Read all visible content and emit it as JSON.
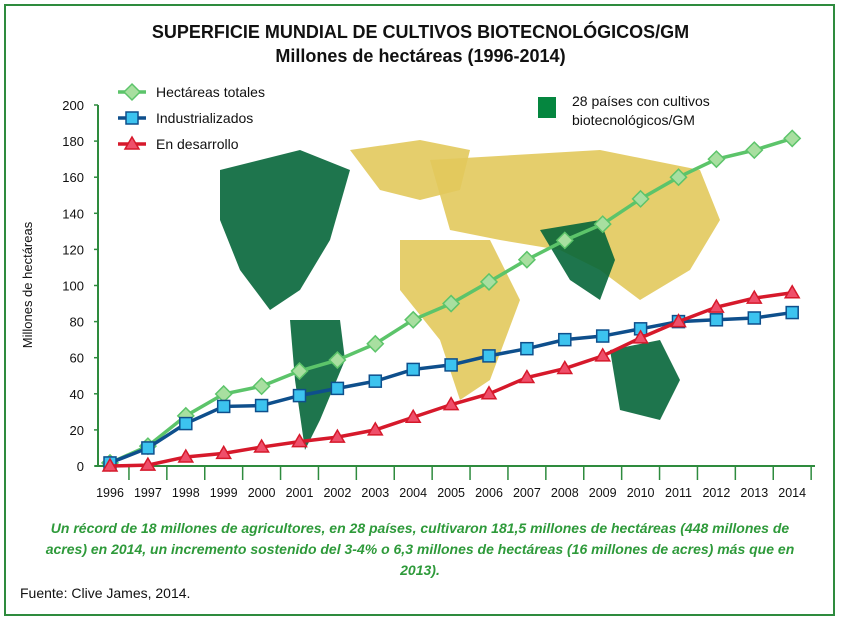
{
  "chart_data": {
    "type": "line",
    "title": "SUPERFICIE MUNDIAL DE CULTIVOS BIOTECNOLÓGICOS/GM",
    "subtitle": "Millones de hectáreas (1996-2014)",
    "xlabel": "",
    "ylabel": "Millones de hectáreas",
    "ylim": [
      0,
      200
    ],
    "yticks": [
      0,
      20,
      40,
      60,
      80,
      100,
      120,
      140,
      160,
      180,
      200
    ],
    "x": [
      "1996",
      "1997",
      "1998",
      "1999",
      "2000",
      "2001",
      "2002",
      "2003",
      "2004",
      "2005",
      "2006",
      "2007",
      "2008",
      "2009",
      "2010",
      "2011",
      "2012",
      "2013",
      "2014"
    ],
    "series": [
      {
        "name": "Hectáreas totales",
        "color": "#5cc46a",
        "marker": "diamond",
        "values": [
          1.7,
          11,
          27.8,
          39.9,
          44.2,
          52.6,
          58.7,
          67.7,
          81,
          90,
          102,
          114.3,
          125,
          134,
          148,
          160,
          170,
          175,
          181.5
        ]
      },
      {
        "name": "Industrializados",
        "color": "#0e4f8c",
        "marker": "square",
        "values": [
          1.7,
          10,
          23.5,
          33,
          33.5,
          39,
          43,
          47,
          53.5,
          56,
          61,
          65,
          70,
          72,
          76,
          80,
          81,
          82,
          85
        ]
      },
      {
        "name": "En desarrollo",
        "color": "#d6192b",
        "marker": "triangle",
        "values": [
          0,
          0.5,
          5,
          7,
          10.5,
          13.5,
          16,
          20,
          27,
          34,
          40,
          49,
          54,
          61,
          71,
          80,
          88,
          93,
          96
        ]
      }
    ],
    "map_legend": "28 países con cultivos biotecnológicos/GM",
    "legend_position": "top-left"
  },
  "caption": "Un récord de 18 millones de agricultores, en 28 países, cultivaron 181,5 millones de hectáreas (448 millones de acres) en 2014, un incremento sostenido del 3-4% o 6,3 millones de hectáreas (16 millones de acres) más que en 2013).",
  "source": "Fuente: Clive James, 2014."
}
